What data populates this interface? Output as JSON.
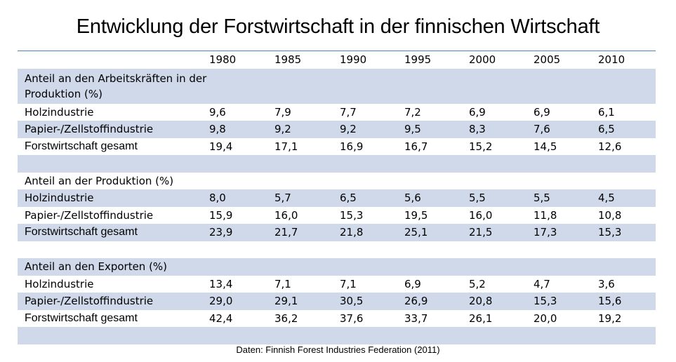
{
  "title": "Entwicklung der Forstwirtschaft in der finnischen Wirtschaft",
  "source": "Daten: Finnish Forest Industries Federation (2011)",
  "colors": {
    "band": "#d0d9ea",
    "rule": "#4f81bd"
  },
  "chart_data": {
    "type": "table",
    "title": "Entwicklung der Forstwirtschaft in der finnischen Wirtschaft",
    "columns": [
      "1980",
      "1985",
      "1990",
      "1995",
      "2000",
      "2005",
      "2010"
    ],
    "sections": [
      {
        "heading": "Anteil an den Arbeitskräften in der Produktion (%)",
        "rows": [
          {
            "label": "Holzindustrie",
            "values": [
              "9,6",
              "7,9",
              "7,7",
              "7,2",
              "6,9",
              "6,9",
              "6,1"
            ]
          },
          {
            "label": "Papier-/Zellstoffindustrie",
            "values": [
              "9,8",
              "9,2",
              "9,2",
              "9,5",
              "8,3",
              "7,6",
              "6,5"
            ]
          },
          {
            "label": "Forstwirtschaft gesamt",
            "values": [
              "19,4",
              "17,1",
              "16,9",
              "16,7",
              "15,2",
              "14,5",
              "12,6"
            ]
          }
        ]
      },
      {
        "heading": "Anteil an der Produktion (%)",
        "rows": [
          {
            "label": "Holzindustrie",
            "values": [
              "8,0",
              "5,7",
              "6,5",
              "5,6",
              "5,5",
              "5,5",
              "4,5"
            ]
          },
          {
            "label": "Papier-/Zellstoffindustrie",
            "values": [
              "15,9",
              "16,0",
              "15,3",
              "19,5",
              "16,0",
              "11,8",
              "10,8"
            ]
          },
          {
            "label": "Forstwirtschaft gesamt",
            "values": [
              "23,9",
              "21,7",
              "21,8",
              "25,1",
              "21,5",
              "17,3",
              "15,3"
            ]
          }
        ]
      },
      {
        "heading": "Anteil an den Exporten (%)",
        "rows": [
          {
            "label": "Holzindustrie",
            "values": [
              "13,4",
              "7,1",
              "7,1",
              "6,9",
              "5,2",
              "4,7",
              "3,6"
            ]
          },
          {
            "label": "Papier-/Zellstoffindustrie",
            "values": [
              "29,0",
              "29,1",
              "30,5",
              "26,9",
              "20,8",
              "15,3",
              "15,6"
            ]
          },
          {
            "label": "Forstwirtschaft gesamt",
            "values": [
              "42,4",
              "36,2",
              "37,6",
              "33,7",
              "26,1",
              "20,0",
              "19,2"
            ]
          }
        ]
      }
    ]
  }
}
